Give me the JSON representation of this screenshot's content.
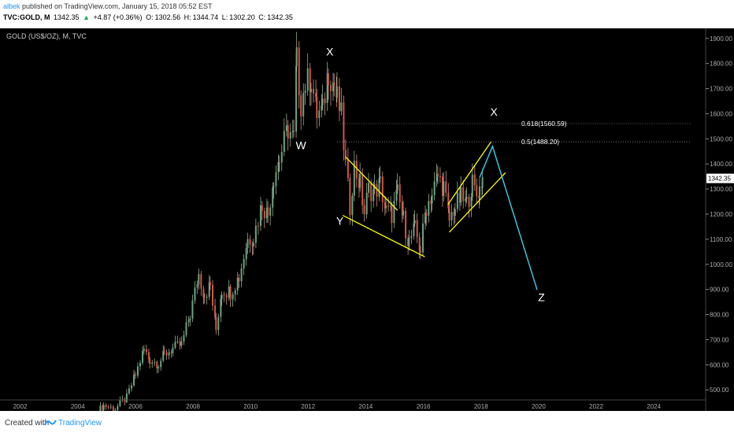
{
  "header": {
    "author": "albek",
    "published_text": " published on TradingView.com, January 15, 2018 05:52 EST",
    "symbol": "TVC:GOLD, M",
    "last": "1342.35",
    "change": "+4.87 (+0.36%)",
    "o_label": "O:",
    "o": "1302.56",
    "h_label": "H:",
    "h": "1344.74",
    "l_label": "L:",
    "l": "1302.20",
    "c_label": "C:",
    "c": "1342.35"
  },
  "footer": {
    "created": "Created with",
    "brand": "TradingView"
  },
  "chart_data": {
    "type": "candlestick",
    "title": "GOLD (US$/OZ), M, TVC",
    "x_ticks": [
      "2002",
      "2004",
      "2006",
      "2008",
      "2010",
      "2012",
      "2014",
      "2016",
      "2018",
      "2020",
      "2022",
      "2024"
    ],
    "y_ticks": [
      "500.00",
      "600.00",
      "700.00",
      "800.00",
      "900.00",
      "1000.00",
      "1100.00",
      "1200.00",
      "1300.00",
      "1400.00",
      "1500.00",
      "1600.00",
      "1700.00",
      "1800.00",
      "1900.00"
    ],
    "ylim": [
      460,
      1940
    ],
    "xlim": [
      2001.3,
      2025.8
    ],
    "last_price": "1342.35",
    "fib_levels": [
      {
        "label": "0.618(1560.59)",
        "value": 1560.59,
        "x_start": 2013.1
      },
      {
        "label": "0.5(1488.20)",
        "value": 1488.2,
        "x_start": 2013.0
      }
    ],
    "wave_labels": [
      {
        "text": "X",
        "x": 2012.75,
        "y": 1832
      },
      {
        "text": "W",
        "x": 2011.75,
        "y": 1458
      },
      {
        "text": "Y",
        "x": 2013.1,
        "y": 1158
      },
      {
        "text": "X",
        "x": 2018.45,
        "y": 1592
      },
      {
        "text": "Z",
        "x": 2020.1,
        "y": 853
      }
    ],
    "channels": [
      {
        "color": "#ffff00",
        "points": [
          [
            2013.3,
            1428
          ],
          [
            2015.1,
            1215
          ]
        ]
      },
      {
        "color": "#ffff00",
        "points": [
          [
            2013.2,
            1195
          ],
          [
            2016.05,
            1030
          ]
        ]
      },
      {
        "color": "#ffff00",
        "points": [
          [
            2016.85,
            1238
          ],
          [
            2018.35,
            1488
          ]
        ]
      },
      {
        "color": "#ffff00",
        "points": [
          [
            2016.9,
            1128
          ],
          [
            2018.85,
            1365
          ]
        ]
      }
    ],
    "projection": {
      "color": "#39c6e0",
      "points": [
        [
          2017.95,
          1345
        ],
        [
          2018.4,
          1470
        ],
        [
          2019.95,
          898
        ]
      ]
    },
    "monthly_closes": [
      [
        2004.7,
        415
      ],
      [
        2004.9,
        438
      ],
      [
        2005.3,
        425
      ],
      [
        2005.7,
        470
      ],
      [
        2006.0,
        560
      ],
      [
        2006.3,
        660
      ],
      [
        2006.5,
        620
      ],
      [
        2006.8,
        605
      ],
      [
        2007.0,
        640
      ],
      [
        2007.3,
        665
      ],
      [
        2007.6,
        680
      ],
      [
        2007.9,
        800
      ],
      [
        2008.2,
        960
      ],
      [
        2008.4,
        880
      ],
      [
        2008.6,
        915
      ],
      [
        2008.8,
        740
      ],
      [
        2009.0,
        900
      ],
      [
        2009.3,
        890
      ],
      [
        2009.6,
        950
      ],
      [
        2009.9,
        1100
      ],
      [
        2010.1,
        1110
      ],
      [
        2010.4,
        1240
      ],
      [
        2010.6,
        1200
      ],
      [
        2010.8,
        1350
      ],
      [
        2011.0,
        1420
      ],
      [
        2011.3,
        1540
      ],
      [
        2011.5,
        1500
      ],
      [
        2011.6,
        1810
      ],
      [
        2011.75,
        1640
      ],
      [
        2011.9,
        1720
      ],
      [
        2012.1,
        1740
      ],
      [
        2012.3,
        1600
      ],
      [
        2012.5,
        1610
      ],
      [
        2012.7,
        1770
      ],
      [
        2012.9,
        1715
      ],
      [
        2013.0,
        1660
      ],
      [
        2013.15,
        1590
      ],
      [
        2013.3,
        1390
      ],
      [
        2013.45,
        1230
      ],
      [
        2013.6,
        1390
      ],
      [
        2013.8,
        1320
      ],
      [
        2013.95,
        1205
      ],
      [
        2014.1,
        1300
      ],
      [
        2014.3,
        1290
      ],
      [
        2014.5,
        1320
      ],
      [
        2014.7,
        1210
      ],
      [
        2014.9,
        1200
      ],
      [
        2015.1,
        1280
      ],
      [
        2015.3,
        1180
      ],
      [
        2015.5,
        1090
      ],
      [
        2015.7,
        1140
      ],
      [
        2015.9,
        1060
      ],
      [
        2016.1,
        1230
      ],
      [
        2016.3,
        1280
      ],
      [
        2016.5,
        1350
      ],
      [
        2016.7,
        1310
      ],
      [
        2016.9,
        1175
      ],
      [
        2017.1,
        1230
      ],
      [
        2017.3,
        1265
      ],
      [
        2017.5,
        1240
      ],
      [
        2017.7,
        1320
      ],
      [
        2017.85,
        1275
      ],
      [
        2017.95,
        1300
      ],
      [
        2018.05,
        1342
      ]
    ]
  }
}
